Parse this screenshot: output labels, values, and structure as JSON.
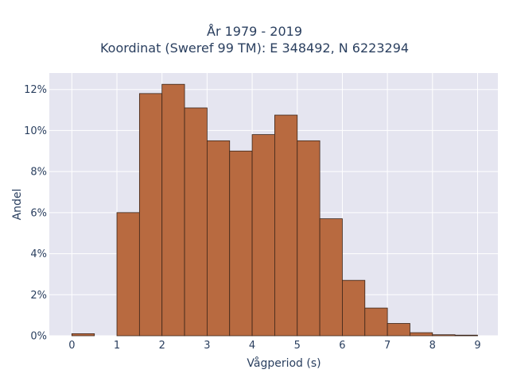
{
  "chart_data": {
    "type": "bar",
    "title_line1": "År 1979 - 2019",
    "title_line2": "Koordinat (Sweref 99 TM): E 348492, N 6223294",
    "xlabel": "Vågperiod (s)",
    "ylabel": "Andel",
    "bin_width": 0.5,
    "bins": [
      {
        "start": 0.0,
        "value": 0.1
      },
      {
        "start": 0.5,
        "value": 0.0
      },
      {
        "start": 1.0,
        "value": 6.0
      },
      {
        "start": 1.5,
        "value": 11.8
      },
      {
        "start": 2.0,
        "value": 12.25
      },
      {
        "start": 2.5,
        "value": 11.1
      },
      {
        "start": 3.0,
        "value": 9.5
      },
      {
        "start": 3.5,
        "value": 9.0
      },
      {
        "start": 4.0,
        "value": 9.8
      },
      {
        "start": 4.5,
        "value": 10.75
      },
      {
        "start": 5.0,
        "value": 9.5
      },
      {
        "start": 5.5,
        "value": 5.7
      },
      {
        "start": 6.0,
        "value": 2.7
      },
      {
        "start": 6.5,
        "value": 1.35
      },
      {
        "start": 7.0,
        "value": 0.6
      },
      {
        "start": 7.5,
        "value": 0.15
      },
      {
        "start": 8.0,
        "value": 0.05
      },
      {
        "start": 8.5,
        "value": 0.03
      }
    ],
    "xlim": [
      -0.5,
      9.45
    ],
    "ylim": [
      0,
      12.8
    ],
    "x_ticks": [
      0,
      1,
      2,
      3,
      4,
      5,
      6,
      7,
      8,
      9
    ],
    "y_ticks": [
      0,
      2,
      4,
      6,
      8,
      10,
      12
    ],
    "y_tick_suffix": "%",
    "grid": true,
    "colors": {
      "bar_fill": "#b86a40",
      "bar_stroke": "#3a2418",
      "plot_bg": "#e5e5f0",
      "grid": "#ffffff"
    }
  }
}
